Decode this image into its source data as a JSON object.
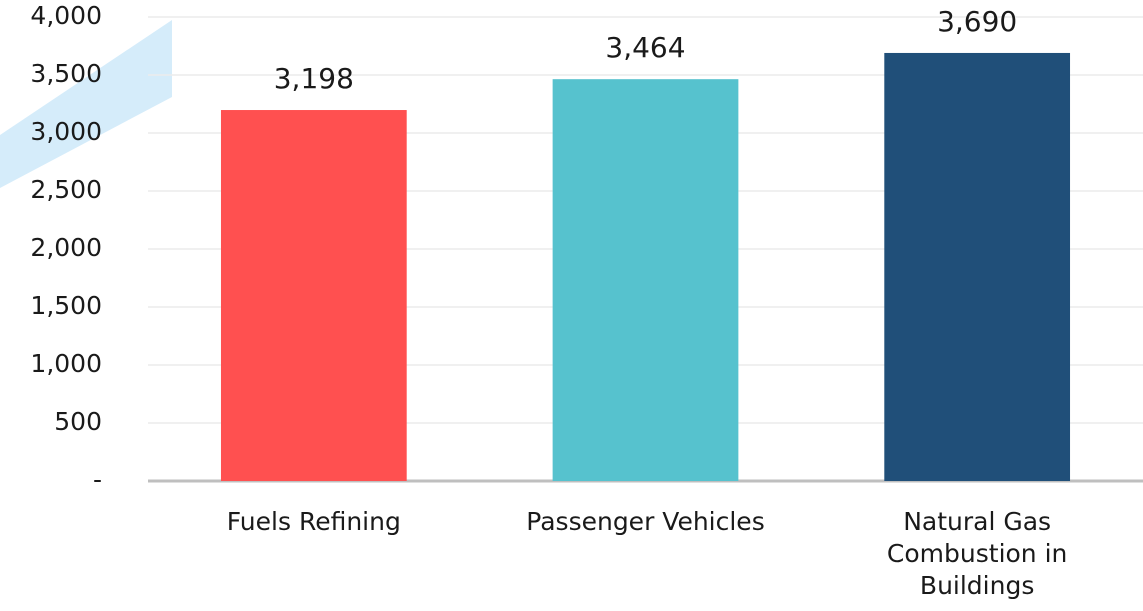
{
  "chart_data": {
    "type": "bar",
    "categories": [
      "Fuels Refining",
      "Passenger Vehicles",
      "Natural Gas Combustion in Buildings"
    ],
    "values": [
      3198,
      3464,
      3690
    ],
    "value_labels": [
      "3,198",
      "3,464",
      "3,690"
    ],
    "colors": [
      "#ff5050",
      "#56c2ce",
      "#204f79"
    ],
    "ylim": [
      0,
      4000
    ],
    "yticks": [
      {
        "value": 0,
        "label": "-"
      },
      500,
      {
        "value": 1000,
        "label": "1,000"
      },
      {
        "value": 1500,
        "label": "1,500"
      },
      {
        "value": 2000,
        "label": "2,000"
      },
      {
        "value": 2500,
        "label": "2,500"
      },
      {
        "value": 3000,
        "label": "3,000"
      },
      {
        "value": 3500,
        "label": "3,500"
      },
      {
        "value": 4000,
        "label": "4,000"
      }
    ],
    "grid": true
  }
}
